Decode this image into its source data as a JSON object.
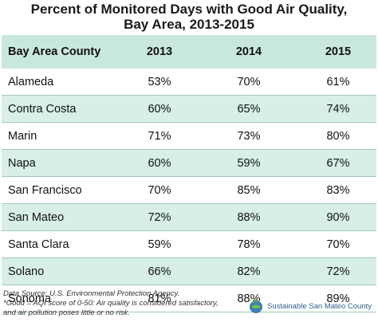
{
  "title_line1": "Percent of Monitored Days with Good Air Quality,",
  "title_line2": "Bay Area, 2013-2015",
  "chart_data": {
    "type": "table",
    "title": "Percent of Monitored Days with Good Air Quality, Bay Area, 2013-2015",
    "columns": [
      "Bay Area County",
      "2013",
      "2014",
      "2015"
    ],
    "rows": [
      [
        "Alameda",
        "53%",
        "70%",
        "61%"
      ],
      [
        "Contra Costa",
        "60%",
        "65%",
        "74%"
      ],
      [
        "Marin",
        "71%",
        "73%",
        "80%"
      ],
      [
        "Napa",
        "60%",
        "59%",
        "67%"
      ],
      [
        "San Francisco",
        "70%",
        "85%",
        "83%"
      ],
      [
        "San Mateo",
        "72%",
        "88%",
        "90%"
      ],
      [
        "Santa Clara",
        "59%",
        "78%",
        "70%"
      ],
      [
        "Solano",
        "66%",
        "82%",
        "72%"
      ],
      [
        "Sonoma",
        "81%",
        "88%",
        "89%"
      ]
    ],
    "categories": [
      "Alameda",
      "Contra Costa",
      "Marin",
      "Napa",
      "San Francisco",
      "San Mateo",
      "Santa Clara",
      "Solano",
      "Sonoma"
    ],
    "series": [
      {
        "name": "2013",
        "values": [
          53,
          60,
          71,
          60,
          70,
          72,
          59,
          66,
          81
        ]
      },
      {
        "name": "2014",
        "values": [
          70,
          65,
          73,
          59,
          85,
          88,
          78,
          82,
          88
        ]
      },
      {
        "name": "2015",
        "values": [
          61,
          74,
          80,
          67,
          83,
          90,
          70,
          72,
          89
        ]
      }
    ]
  },
  "footnotes": {
    "source": "Data Source: U.S. Environmental Protection Agency.",
    "good_line1": "*Good = AQI score of 0-50: Air quality is considered satisfactory,",
    "good_line2": "and air pollution poses little or no risk."
  },
  "logo": {
    "text": "Sustainable San Mateo County",
    "icon": "globe-leaf-icon"
  },
  "colors": {
    "header_bg": "#c9e8dd",
    "stripe_bg": "#d7efe5",
    "row_border": "#9fc9b8",
    "logo_text": "#2d5f8a"
  }
}
